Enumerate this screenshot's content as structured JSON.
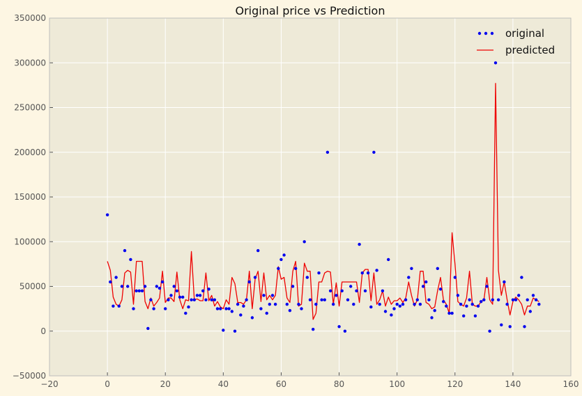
{
  "chart_data": {
    "type": "line",
    "title": "Original price vs Prediction",
    "xlabel": "",
    "ylabel": "",
    "xlim": [
      -20,
      160
    ],
    "ylim": [
      -50000,
      350000
    ],
    "x_ticks": [
      "−20",
      "0",
      "20",
      "40",
      "60",
      "80",
      "100",
      "120",
      "140",
      "160"
    ],
    "y_ticks": [
      "−50000",
      "0",
      "50000",
      "100000",
      "150000",
      "200000",
      "250000",
      "300000",
      "350000"
    ],
    "grid": true,
    "legend_placement": "top-right",
    "colors": {
      "plot_background": "#eeead8",
      "figure_background": "#fdf6e3",
      "original": "#0000ee",
      "predicted": "#ee0000",
      "grid": "#ffffff"
    },
    "series": [
      {
        "name": "original",
        "style": "scatter",
        "values": [
          130000,
          55000,
          28000,
          60000,
          28000,
          50000,
          90000,
          50000,
          80000,
          25000,
          45000,
          45000,
          45000,
          50000,
          3000,
          35000,
          25000,
          50000,
          48000,
          55000,
          25000,
          35000,
          40000,
          50000,
          45000,
          38000,
          38000,
          20000,
          27000,
          35000,
          35000,
          40000,
          40000,
          45000,
          35000,
          47000,
          35000,
          35000,
          25000,
          25000,
          1000,
          25000,
          25000,
          22000,
          0,
          30000,
          18000,
          28000,
          35000,
          55000,
          15000,
          60000,
          90000,
          25000,
          40000,
          20000,
          30000,
          40000,
          30000,
          70000,
          80000,
          85000,
          30000,
          23000,
          50000,
          70000,
          30000,
          25000,
          100000,
          60000,
          35000,
          2000,
          30000,
          65000,
          35000,
          35000,
          200000,
          45000,
          30000,
          40000,
          5000,
          45000,
          0,
          35000,
          50000,
          30000,
          45000,
          97000,
          65000,
          45000,
          65000,
          27000,
          200000,
          68000,
          30000,
          45000,
          22000,
          80000,
          18000,
          25000,
          30000,
          28000,
          30000,
          35000,
          60000,
          70000,
          30000,
          35000,
          30000,
          50000,
          55000,
          35000,
          15000,
          23000,
          70000,
          47000,
          33000,
          28000,
          20000,
          20000,
          60000,
          40000,
          30000,
          17000,
          28000,
          35000,
          30000,
          17000,
          28000,
          33000,
          35000,
          50000,
          0,
          35000,
          300000,
          35000,
          7000,
          55000,
          30000,
          5000,
          35000,
          35000,
          40000,
          60000,
          5000,
          35000,
          22000,
          40000,
          35000,
          30000
        ]
      },
      {
        "name": "predicted",
        "style": "line",
        "values": [
          78000,
          68000,
          38000,
          30000,
          28000,
          35000,
          65000,
          68000,
          66000,
          30000,
          78000,
          78000,
          78000,
          33000,
          25000,
          37000,
          28000,
          32000,
          37000,
          67000,
          32000,
          37000,
          37000,
          33000,
          66000,
          35000,
          25000,
          35000,
          34000,
          89000,
          35000,
          36000,
          34000,
          34000,
          65000,
          34000,
          40000,
          28000,
          33000,
          27000,
          25000,
          35000,
          30000,
          60000,
          53000,
          32000,
          32000,
          30000,
          35000,
          67000,
          25000,
          58000,
          67000,
          33000,
          65000,
          35000,
          40000,
          35000,
          40000,
          72000,
          58000,
          60000,
          37000,
          32000,
          67000,
          78000,
          28000,
          30000,
          76000,
          67000,
          67000,
          13000,
          20000,
          55000,
          55000,
          65000,
          67000,
          66000,
          30000,
          54000,
          28000,
          55000,
          55000,
          55000,
          55000,
          55000,
          55000,
          32000,
          65000,
          69000,
          69000,
          34000,
          65000,
          30000,
          35000,
          45000,
          28000,
          38000,
          30000,
          34000,
          34000,
          37000,
          32000,
          37000,
          55000,
          40000,
          28000,
          35000,
          67000,
          67000,
          32000,
          30000,
          25000,
          27000,
          45000,
          60000,
          35000,
          30000,
          20000,
          110000,
          75000,
          33000,
          30000,
          28000,
          37000,
          67000,
          30000,
          28000,
          28000,
          33000,
          35000,
          60000,
          35000,
          30000,
          277000,
          68000,
          40000,
          55000,
          35000,
          18000,
          33000,
          38000,
          35000,
          30000,
          18000,
          28000,
          28000,
          37000,
          35000,
          33000
        ]
      }
    ]
  }
}
